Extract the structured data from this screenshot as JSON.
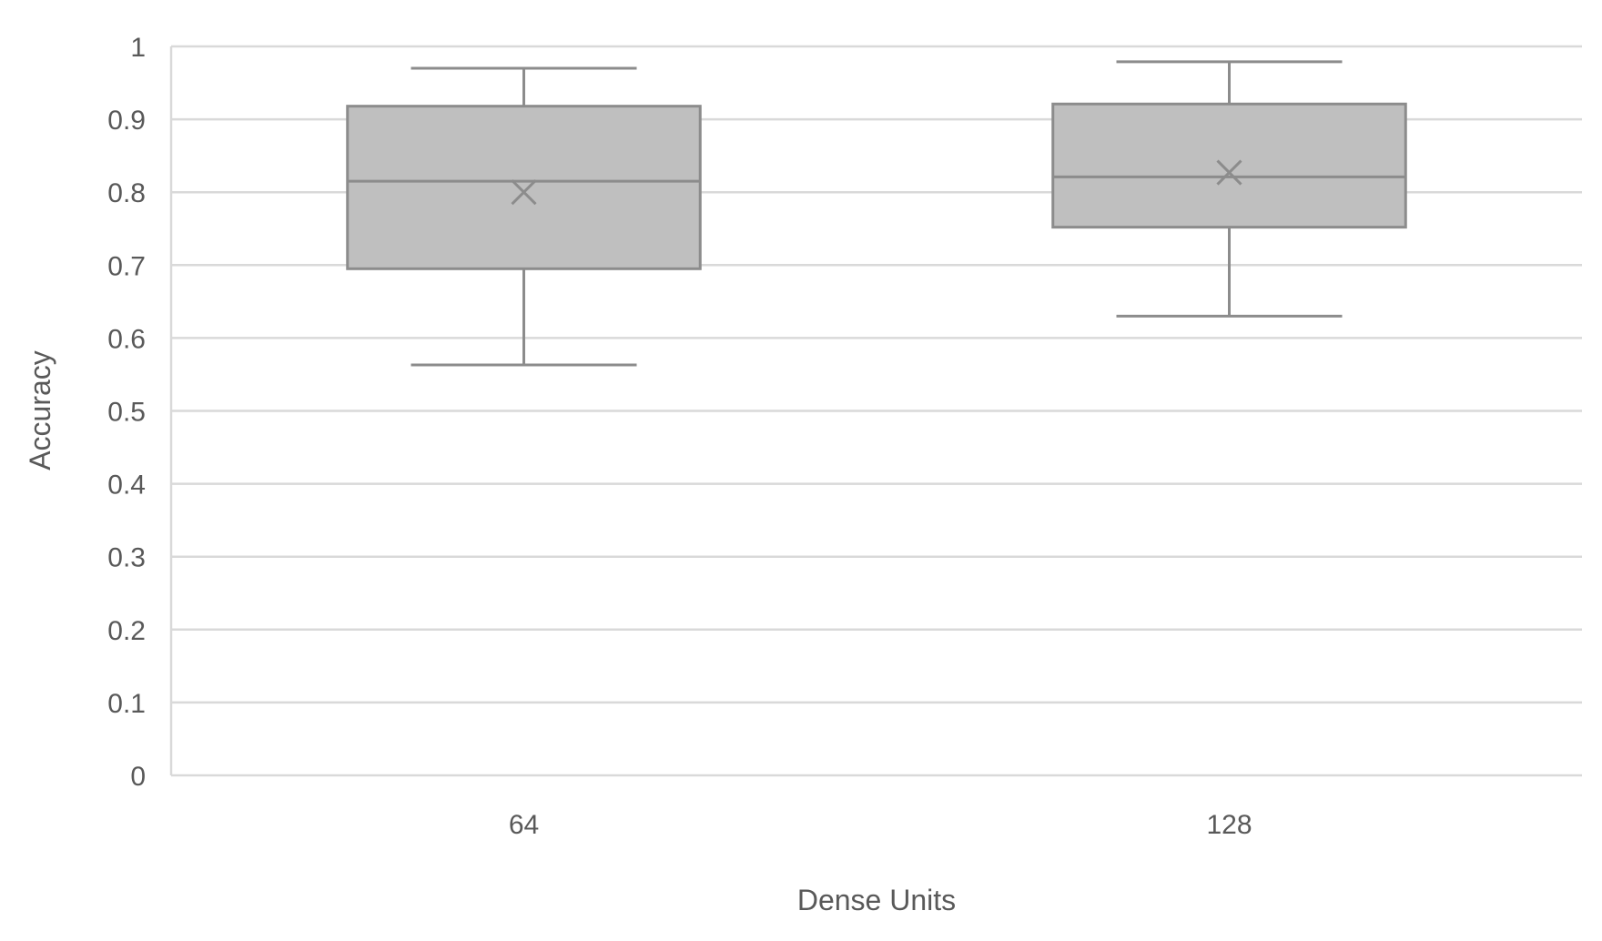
{
  "chart_data": {
    "type": "box",
    "xlabel": "Dense Units",
    "ylabel": "Accuracy",
    "ylim": [
      0,
      1
    ],
    "yticks": [
      "0",
      "0.1",
      "0.2",
      "0.3",
      "0.4",
      "0.5",
      "0.6",
      "0.7",
      "0.8",
      "0.9",
      "1"
    ],
    "grid": true,
    "box_color": "#bfbfbf",
    "line_color": "#8c8c8c",
    "categories": [
      {
        "label": "64",
        "min": 0.563,
        "q1": 0.695,
        "median": 0.815,
        "q3": 0.918,
        "max": 0.97,
        "mean": 0.8
      },
      {
        "label": "128",
        "min": 0.63,
        "q1": 0.752,
        "median": 0.821,
        "q3": 0.921,
        "max": 0.979,
        "mean": 0.827
      }
    ]
  }
}
